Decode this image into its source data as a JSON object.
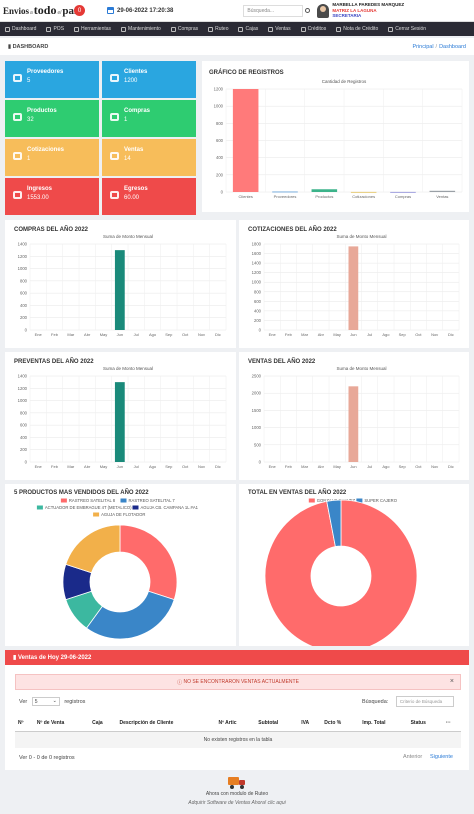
{
  "brand": {
    "part1": "Envios",
    "part2": "a",
    "part3": "todo",
    "part4": "el",
    "part5": "país"
  },
  "header": {
    "notifications_badge": "0",
    "datetime": "29-06-2022 17:20:38",
    "search_placeholder": "Búsqueda...",
    "user_name": "MARBELLA PAREDES MARQUEZ",
    "user_branch": "MATRIZ LA LAGUNA",
    "user_role": "SECRETARIA"
  },
  "nav": [
    "Dashboard",
    "POS",
    "Herramientas",
    "Mantenimiento",
    "Compras",
    "Ruteo",
    "Cajas",
    "Ventas",
    "Créditos",
    "Nota de Crédito",
    "Cerrar Sesión"
  ],
  "page": {
    "title": "DASHBOARD",
    "crumb_home": "Principal",
    "crumb_current": "Dashboard"
  },
  "tiles": [
    {
      "label": "Proveedores",
      "value": "5",
      "color": "#2aa6e0"
    },
    {
      "label": "Clientes",
      "value": "1200",
      "color": "#2aa6e0"
    },
    {
      "label": "Productos",
      "value": "32",
      "color": "#2ecc71"
    },
    {
      "label": "Compras",
      "value": "1",
      "color": "#2ecc71"
    },
    {
      "label": "Cotizaciones",
      "value": "1",
      "color": "#f7bd5a"
    },
    {
      "label": "Ventas",
      "value": "14",
      "color": "#f7bd5a"
    },
    {
      "label": "Ingresos",
      "value": "1553.00",
      "color": "#ef4a4a"
    },
    {
      "label": "Egresos",
      "value": "60.00",
      "color": "#ef4a4a"
    }
  ],
  "registros": {
    "title": "GRÁFICO DE REGISTROS",
    "chart_data": {
      "type": "bar",
      "title": "Cantidad de Registros",
      "categories": [
        "Clientes",
        "Proveedores",
        "Productos",
        "Cotizaciones",
        "Compras",
        "Ventas"
      ],
      "values": [
        1200,
        5,
        32,
        1,
        1,
        14
      ],
      "ylim": [
        0,
        1200
      ],
      "yticks": [
        0,
        200,
        400,
        600,
        800,
        1000,
        1200
      ],
      "colors": [
        "#ff7a7a",
        "#5a9bd6",
        "#3cb38a",
        "#e0c05a",
        "#8a8ad6",
        "#9aa0a6"
      ]
    }
  },
  "monthly_charts": [
    {
      "title": "COMPRAS DEL AÑO 2022",
      "chart_data": {
        "type": "bar",
        "title": "Suma de Monto Mensual",
        "categories": [
          "Ene",
          "Feb",
          "Mar",
          "Abr",
          "May",
          "Jun",
          "Jul",
          "Ago",
          "Sep",
          "Oct",
          "Nov",
          "Dic"
        ],
        "values": [
          0,
          0,
          0,
          0,
          0,
          1300,
          0,
          0,
          0,
          0,
          0,
          0
        ],
        "ylim": [
          0,
          1400
        ],
        "yticks": [
          0,
          200,
          400,
          600,
          800,
          1000,
          1200,
          1400
        ],
        "color": "#1a8a7a"
      }
    },
    {
      "title": "COTIZACIONES DEL AÑO 2022",
      "chart_data": {
        "type": "bar",
        "title": "Suma de Monto Mensual",
        "categories": [
          "Ene",
          "Feb",
          "Mar",
          "Abr",
          "May",
          "Jun",
          "Jul",
          "Ago",
          "Sep",
          "Oct",
          "Nov",
          "Dic"
        ],
        "values": [
          0,
          0,
          0,
          0,
          0,
          1750,
          0,
          0,
          0,
          0,
          0,
          0
        ],
        "ylim": [
          0,
          1800
        ],
        "yticks": [
          0,
          200,
          400,
          600,
          800,
          1000,
          1200,
          1400,
          1600,
          1800
        ],
        "color": "#e8a898"
      }
    },
    {
      "title": "PREVENTAS DEL AÑO 2022",
      "chart_data": {
        "type": "bar",
        "title": "Suma de Monto Mensual",
        "categories": [
          "Ene",
          "Feb",
          "Mar",
          "Abr",
          "May",
          "Jun",
          "Jul",
          "Ago",
          "Sep",
          "Oct",
          "Nov",
          "Dic"
        ],
        "values": [
          0,
          0,
          0,
          0,
          0,
          1300,
          0,
          0,
          0,
          0,
          0,
          0
        ],
        "ylim": [
          0,
          1400
        ],
        "yticks": [
          0,
          200,
          400,
          600,
          800,
          1000,
          1200,
          1400
        ],
        "color": "#1a8a7a"
      }
    },
    {
      "title": "VENTAS DEL AÑO 2022",
      "chart_data": {
        "type": "bar",
        "title": "Suma de Monto Mensual",
        "categories": [
          "Ene",
          "Feb",
          "Mar",
          "Abr",
          "May",
          "Jun",
          "Jul",
          "Ago",
          "Sep",
          "Oct",
          "Nov",
          "Dic"
        ],
        "values": [
          0,
          0,
          0,
          0,
          0,
          2200,
          0,
          0,
          0,
          0,
          0,
          0
        ],
        "ylim": [
          0,
          2500
        ],
        "yticks": [
          0,
          500,
          1000,
          1500,
          2000,
          2500
        ],
        "color": "#e8a898"
      }
    }
  ],
  "top_products": {
    "title": "5 PRODUCTOS MAS VENDIDOS DEL AÑO 2022",
    "chart_data": {
      "type": "pie",
      "categories": [
        "RASTREO SATELITAL 8",
        "RASTREO SATELITAL 7",
        "ACTUADOR DE EMBRAGUE 4T (METALICO)",
        "AGUJA CB. CAMPANA 1L #A1",
        "AGUJA DE FLOTADOR"
      ],
      "values": [
        30,
        30,
        10,
        10,
        20
      ],
      "colors": [
        "#ff6b6b",
        "#3a86c8",
        "#3cb8a0",
        "#1a2a8a",
        "#f2b04a"
      ]
    }
  },
  "total_ventas": {
    "title": "TOTAL EN VENTAS DEL AÑO 2022",
    "chart_data": {
      "type": "pie",
      "categories": [
        "GONZALO CHAVEZ",
        "SUPER CAJERO"
      ],
      "values": [
        97,
        3
      ],
      "colors": [
        "#ff6b6b",
        "#3a86c8"
      ]
    }
  },
  "ventas_hoy": {
    "title": "Ventas de Hoy 29-06-2022",
    "alert": "NO SE ENCONTRARON VENTAS ACTUALMENTE",
    "show_label": "Ver",
    "show_value": "5",
    "records_label": "registros",
    "search_label": "Búsqueda:",
    "search_placeholder": "Criterio de Búsqueda",
    "columns": [
      "Nº",
      "Nº de Venta",
      "Caja",
      "Descripción de Cliente",
      "Nº Artic",
      "Subtotal",
      "IVA",
      "Dcto %",
      "Imp. Total",
      "Status",
      "···"
    ],
    "empty": "No existen registros en la tabla",
    "info": "Ver 0 - 0 de 0 registros",
    "prev": "Anterior",
    "next": "Siguiente"
  },
  "footer": {
    "line1": "Ahora con modulo de Ruteo",
    "line2": "Adquirir Software de Ventas Ahora! clic aqui"
  }
}
